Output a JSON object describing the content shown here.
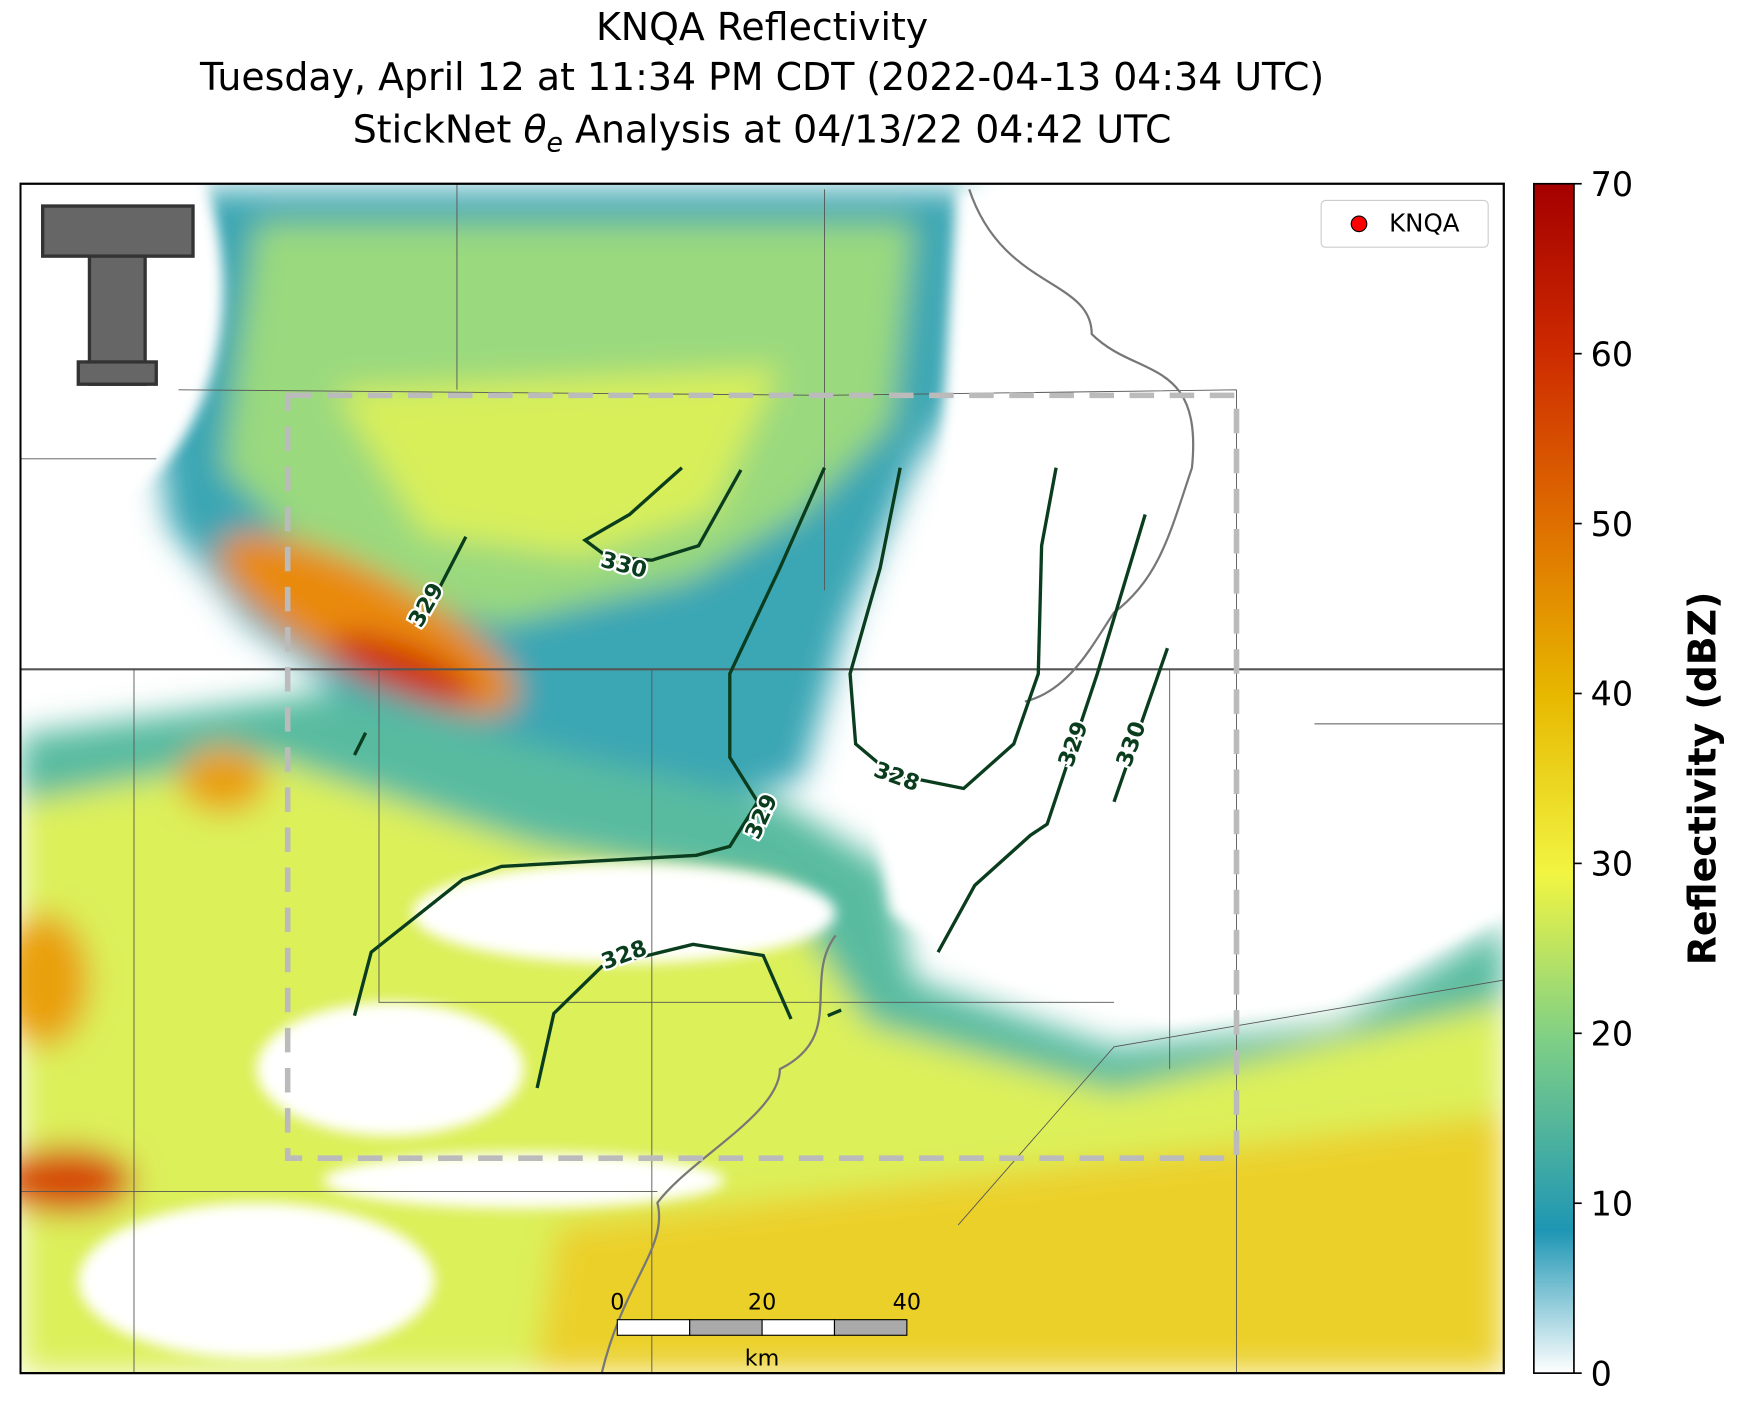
{
  "header": {
    "title": "KNQA Reflectivity",
    "subtitle": "Tuesday, April 12 at 11:34 PM CDT (2022-04-13 04:34 UTC)",
    "analysis_prefix": "StickNet ",
    "theta": "θ",
    "theta_sub": "e",
    "analysis_suffix": " Analysis at 04/13/22 04:42 UTC"
  },
  "legend": {
    "label": "KNQA",
    "color": "#ff0000"
  },
  "colorbar": {
    "label": "Reflectivity (dBZ)",
    "lim": [
      0,
      70
    ],
    "ticks": [
      0,
      10,
      20,
      30,
      40,
      50,
      60,
      70
    ]
  },
  "contour_labels": [
    330,
    329,
    328,
    329,
    329,
    330,
    328
  ],
  "scale_bar": {
    "ticks": [
      0,
      20,
      40
    ],
    "unit": "km"
  }
}
